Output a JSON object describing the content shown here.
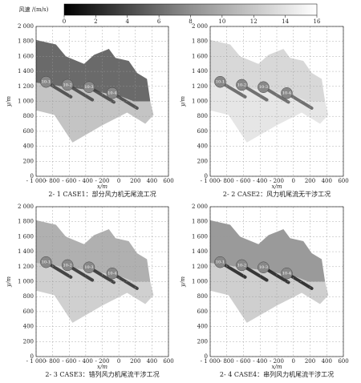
{
  "chart_data": [
    {
      "type": "colorbar",
      "title": "风速 /(m/s)",
      "xlim": [
        0,
        16
      ],
      "xticks": [
        0,
        2,
        4,
        6,
        8,
        10,
        12,
        14,
        16
      ]
    },
    {
      "type": "heatmap",
      "title": "2- 1 CASE1：部分风力机无尾流工况",
      "xlabel": "x/m",
      "ylabel": "y/m",
      "grid": true,
      "xlim": [
        -1000,
        600
      ],
      "xticks": [
        {
          "value": -1000,
          "label": "- 1 000"
        },
        {
          "value": -800,
          "label": "- 800"
        },
        {
          "value": -600,
          "label": "- 600"
        },
        {
          "value": -400,
          "label": "- 400"
        },
        {
          "value": -200,
          "label": "- 200"
        },
        0,
        200,
        400,
        600
      ],
      "ylim": [
        0,
        2000
      ],
      "yticks": [
        0,
        200,
        400,
        600,
        800,
        {
          "value": 1000,
          "label": "1 000"
        },
        {
          "value": 1200,
          "label": "1 200"
        },
        {
          "value": 1400,
          "label": "1 400"
        },
        {
          "value": 1600,
          "label": "1 600"
        },
        {
          "value": 1800,
          "label": "1 800"
        },
        {
          "value": 2000,
          "label": "2 000"
        }
      ],
      "annotations": [
        "10-1",
        "10-2",
        "10-3",
        "10-4"
      ]
    },
    {
      "type": "heatmap",
      "title": "2- 2 CASE2：风力机尾流无干涉工况",
      "xlabel": "x/m",
      "ylabel": "y/m",
      "grid": true,
      "xlim": [
        -1000,
        600
      ],
      "xticks": [
        {
          "value": -1000,
          "label": "- 1 000"
        },
        {
          "value": -800,
          "label": "- 800"
        },
        {
          "value": -600,
          "label": "- 600"
        },
        {
          "value": -400,
          "label": "- 400"
        },
        {
          "value": -200,
          "label": "- 200"
        },
        0,
        200,
        400,
        600
      ],
      "ylim": [
        0,
        2000
      ],
      "yticks": [
        0,
        200,
        400,
        600,
        800,
        {
          "value": 1000,
          "label": "1 000"
        },
        {
          "value": 1200,
          "label": "1 200"
        },
        {
          "value": 1400,
          "label": "1 400"
        },
        {
          "value": 1600,
          "label": "1 600"
        },
        {
          "value": 1800,
          "label": "1 800"
        },
        {
          "value": 2000,
          "label": "2 000"
        }
      ],
      "annotations": [
        "10-1",
        "10-2",
        "10-3",
        "10-4"
      ]
    },
    {
      "type": "heatmap",
      "title": "2- 3 CASE3：错列风力机尾流干涉工况",
      "xlabel": "x/m",
      "ylabel": "y/m",
      "grid": true,
      "xlim": [
        -1000,
        600
      ],
      "xticks": [
        {
          "value": -1000,
          "label": "- 1 000"
        },
        {
          "value": -800,
          "label": "- 800"
        },
        {
          "value": -600,
          "label": "- 600"
        },
        {
          "value": -400,
          "label": "- 400"
        },
        {
          "value": -200,
          "label": "- 200"
        },
        0,
        200,
        400,
        600
      ],
      "ylim": [
        0,
        2000
      ],
      "yticks": [
        0,
        200,
        400,
        600,
        800,
        {
          "value": 1000,
          "label": "1 000"
        },
        {
          "value": 1200,
          "label": "1 200"
        },
        {
          "value": 1400,
          "label": "1 400"
        },
        {
          "value": 1600,
          "label": "1 600"
        },
        {
          "value": 1800,
          "label": "1 800"
        },
        {
          "value": 2000,
          "label": "2 000"
        }
      ],
      "annotations": [
        "10-1",
        "10-2",
        "10-3",
        "10-4"
      ]
    },
    {
      "type": "heatmap",
      "title": "2- 4 CASE4：串列风力机尾流干涉工况",
      "xlabel": "x/m",
      "ylabel": "y/m",
      "grid": true,
      "xlim": [
        -1000,
        600
      ],
      "xticks": [
        {
          "value": -1000,
          "label": "- 1 000"
        },
        {
          "value": -800,
          "label": "- 800"
        },
        {
          "value": -600,
          "label": "- 600"
        },
        {
          "value": -400,
          "label": "- 400"
        },
        {
          "value": -200,
          "label": "- 200"
        },
        0,
        200,
        400,
        600
      ],
      "ylim": [
        0,
        2000
      ],
      "yticks": [
        0,
        200,
        400,
        600,
        800,
        {
          "value": 1000,
          "label": "1 000"
        },
        {
          "value": 1200,
          "label": "1 200"
        },
        {
          "value": 1400,
          "label": "1 400"
        },
        {
          "value": 1600,
          "label": "1 600"
        },
        {
          "value": 1800,
          "label": "1 800"
        },
        {
          "value": 2000,
          "label": "2 000"
        }
      ],
      "annotations": [
        "10-1",
        "10-2",
        "10-3",
        "10-4"
      ]
    }
  ]
}
